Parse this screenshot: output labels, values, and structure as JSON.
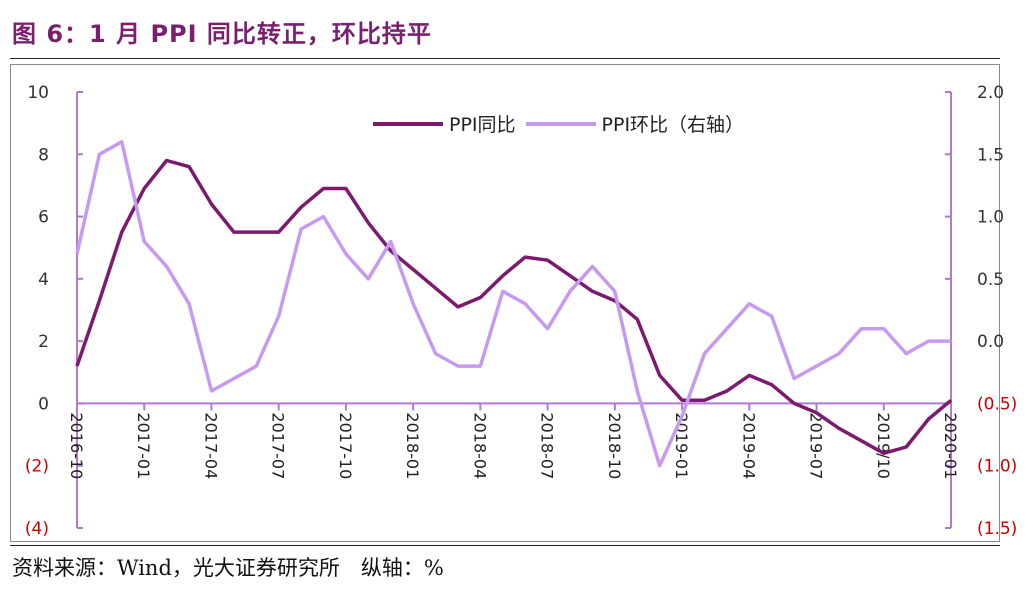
{
  "title": "图 6：1 月 PPI 同比转正，环比持平",
  "source_note": "资料来源：Wind，光大证券研究所　纵轴：%",
  "colors": {
    "yoy": "#7b1a6e",
    "mom": "#c79af2",
    "negative_tick": "#cc0000",
    "axis": "#b07ad0"
  },
  "chart_data": {
    "type": "line",
    "x": [
      "2016-10",
      "2016-11",
      "2016-12",
      "2017-01",
      "2017-02",
      "2017-03",
      "2017-04",
      "2017-05",
      "2017-06",
      "2017-07",
      "2017-08",
      "2017-09",
      "2017-10",
      "2017-11",
      "2017-12",
      "2018-01",
      "2018-02",
      "2018-03",
      "2018-04",
      "2018-05",
      "2018-06",
      "2018-07",
      "2018-08",
      "2018-09",
      "2018-10",
      "2018-11",
      "2018-12",
      "2019-01",
      "2019-02",
      "2019-03",
      "2019-04",
      "2019-05",
      "2019-06",
      "2019-07",
      "2019-08",
      "2019-09",
      "2019-10",
      "2019-11",
      "2019-12",
      "2020-01"
    ],
    "x_tick_labels": [
      "2016-10",
      "2017-01",
      "2017-04",
      "2017-07",
      "2017-10",
      "2018-01",
      "2018-04",
      "2018-07",
      "2018-10",
      "2019-01",
      "2019-04",
      "2019-07",
      "2019/10",
      "2020-01"
    ],
    "x_tick_index": [
      0,
      3,
      6,
      9,
      12,
      15,
      18,
      21,
      24,
      27,
      30,
      33,
      36,
      39
    ],
    "y_left_ticks": [
      "10",
      "8",
      "6",
      "4",
      "2",
      "0",
      "(2)",
      "(4)"
    ],
    "y_right_ticks": [
      "2.0",
      "1.5",
      "1.0",
      "0.5",
      "0.0",
      "(0.5)",
      "(1.0)",
      "(1.5)"
    ],
    "ylim_left": [
      -4,
      10
    ],
    "ylim_right": [
      -1.5,
      2.0
    ],
    "series": [
      {
        "name": "PPI同比",
        "axis": "left",
        "values": [
          1.2,
          3.3,
          5.5,
          6.9,
          7.8,
          7.6,
          6.4,
          5.5,
          5.5,
          5.5,
          6.3,
          6.9,
          6.9,
          5.8,
          4.9,
          4.3,
          3.7,
          3.1,
          3.4,
          4.1,
          4.7,
          4.6,
          4.1,
          3.6,
          3.3,
          2.7,
          0.9,
          0.1,
          0.1,
          0.4,
          0.9,
          0.6,
          0.0,
          -0.3,
          -0.8,
          -1.2,
          -1.6,
          -1.4,
          -0.5,
          0.1
        ]
      },
      {
        "name": "PPI环比（右轴）",
        "axis": "right",
        "values": [
          0.7,
          1.5,
          1.6,
          0.8,
          0.6,
          0.3,
          -0.4,
          -0.3,
          -0.2,
          0.2,
          0.9,
          1.0,
          0.7,
          0.5,
          0.8,
          0.3,
          -0.1,
          -0.2,
          -0.2,
          0.4,
          0.3,
          0.1,
          0.4,
          0.6,
          0.4,
          -0.4,
          -1.0,
          -0.6,
          -0.1,
          0.1,
          0.3,
          0.2,
          -0.3,
          -0.2,
          -0.1,
          0.1,
          0.1,
          -0.1,
          0.0,
          0.0
        ]
      }
    ]
  }
}
